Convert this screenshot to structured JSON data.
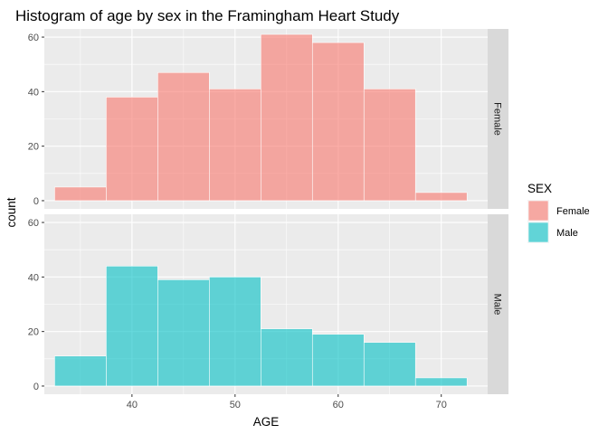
{
  "chart_data": {
    "type": "bar",
    "title": "Histogram of age by sex in the Framingham Heart Study",
    "xlabel": "AGE",
    "ylabel": "count",
    "xlim": [
      31.5,
      74.5
    ],
    "ylim": [
      -3,
      63
    ],
    "x_ticks": [
      40,
      50,
      60,
      70
    ],
    "y_ticks": [
      0,
      20,
      40,
      60
    ],
    "bin_width": 5,
    "bin_centers": [
      35,
      40,
      45,
      50,
      55,
      60,
      65,
      70
    ],
    "grid": true,
    "legend_position": "right",
    "legend_title": "SEX",
    "series": [
      {
        "name": "Female",
        "color": "#F8766D",
        "values": [
          5,
          38,
          47,
          41,
          61,
          58,
          41,
          3
        ]
      },
      {
        "name": "Male",
        "color": "#00BFC4",
        "values": [
          11,
          44,
          39,
          40,
          21,
          19,
          16,
          3
        ]
      }
    ]
  }
}
